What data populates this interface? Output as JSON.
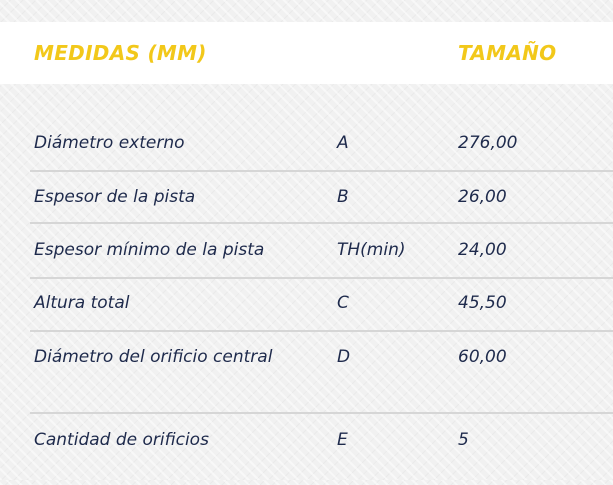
{
  "header": {
    "measure": "MEDIDAS (MM)",
    "size": "TAMAÑO"
  },
  "rows": [
    {
      "name": "Diámetro externo",
      "code": "A",
      "value": "276,00"
    },
    {
      "name": "Espesor de la pista",
      "code": "B",
      "value": "26,00"
    },
    {
      "name": "Espesor mínimo de la pista",
      "code": "TH(min)",
      "value": "24,00"
    },
    {
      "name": "Altura total",
      "code": "C",
      "value": "45,50"
    },
    {
      "name": "Diámetro del orificio central",
      "code": "D",
      "value": "60,00"
    },
    {
      "name": "Cantidad de orificios",
      "code": "E",
      "value": "5"
    }
  ],
  "colors": {
    "accent": "#f2c81a",
    "text": "#1e2a4c"
  }
}
